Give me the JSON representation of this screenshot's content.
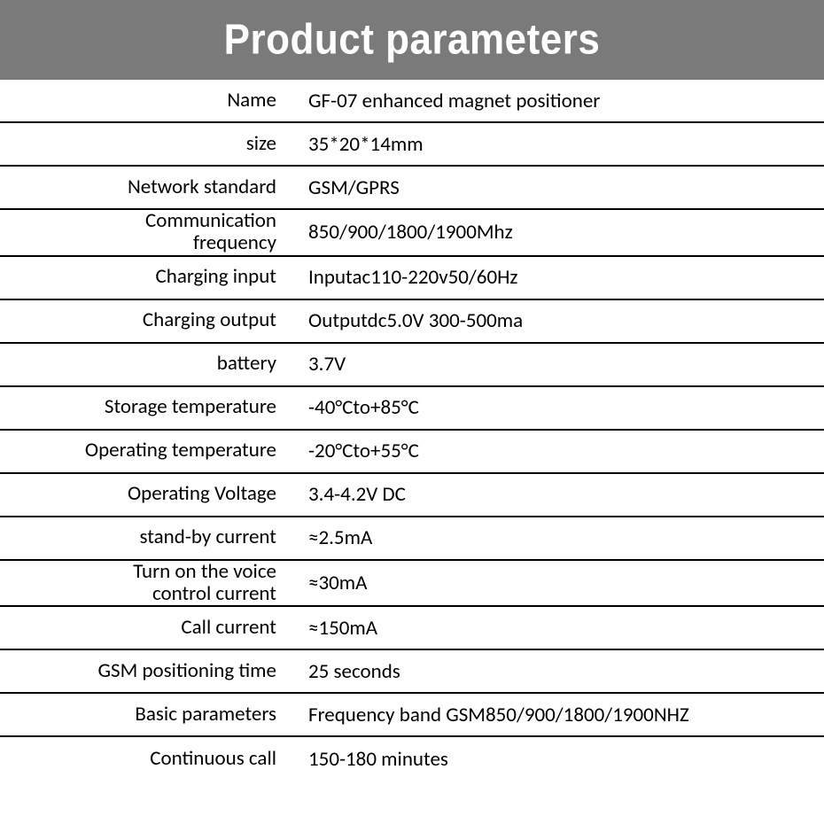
{
  "header": {
    "title": "Product parameters",
    "background_color": "#7a7a7a",
    "text_color": "#ffffff",
    "font_size": 44
  },
  "table": {
    "type": "table",
    "border_color": "#000000",
    "text_color": "#000000",
    "label_fontsize": 23,
    "value_fontsize": 23,
    "label_width": 330,
    "rows": [
      {
        "label": "Name",
        "value": "GF-07 enhanced magnet positioner"
      },
      {
        "label": "size",
        "value": "35*20*14mm"
      },
      {
        "label": "Network standard",
        "value": "GSM/GPRS"
      },
      {
        "label": "Communication\nfrequency",
        "value": "850/900/1800/1900Mhz"
      },
      {
        "label": "Charging input",
        "value": "Inputac110-220v50/60Hz"
      },
      {
        "label": "Charging output",
        "value": "Outputdc5.0V 300-500ma"
      },
      {
        "label": "battery",
        "value": "3.7V"
      },
      {
        "label": "Storage temperature",
        "value": "-40°Cto+85°C"
      },
      {
        "label": "Operating temperature",
        "value": "-20°Cto+55°C"
      },
      {
        "label": "Operating Voltage",
        "value": "3.4-4.2V DC"
      },
      {
        "label": "stand-by current",
        "value": "≈2.5mA"
      },
      {
        "label": "Turn on the voice\ncontrol current",
        "value": "≈30mA"
      },
      {
        "label": "Call current",
        "value": "≈150mA"
      },
      {
        "label": "GSM positioning time",
        "value": "25 seconds"
      },
      {
        "label": "Basic parameters",
        "value": "Frequency band GSM850/900/1800/1900NHZ"
      },
      {
        "label": "Continuous call",
        "value": "150-180 minutes"
      }
    ]
  }
}
